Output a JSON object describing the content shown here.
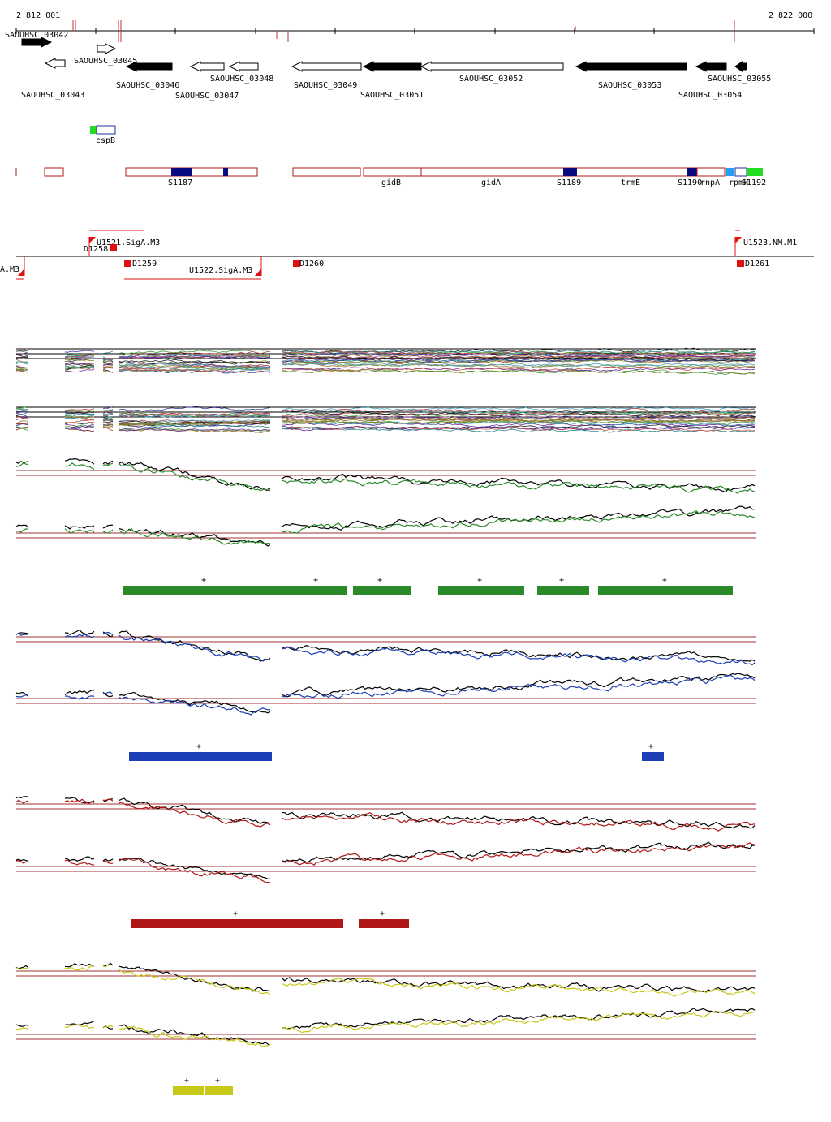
{
  "ruler": {
    "start_label": "2 812 001",
    "end_label": "2 822 000"
  },
  "chart_data": {
    "type": "genome-browser",
    "genomic_range": {
      "start": 2812001,
      "end": 2822000
    },
    "genes": [
      {
        "name": "SAOUHSC_03042",
        "strand": "+",
        "fill": "black"
      },
      {
        "name": "SAOUHSC_03043",
        "strand": "-",
        "fill": "white"
      },
      {
        "name": "SAOUHSC_03045",
        "strand": "+",
        "fill": "white"
      },
      {
        "name": "SAOUHSC_03046",
        "strand": "-",
        "fill": "black"
      },
      {
        "name": "SAOUHSC_03047",
        "strand": "-",
        "fill": "white"
      },
      {
        "name": "SAOUHSC_03048",
        "strand": "-",
        "fill": "white"
      },
      {
        "name": "SAOUHSC_03049",
        "strand": "-",
        "fill": "white"
      },
      {
        "name": "SAOUHSC_03051",
        "strand": "-",
        "fill": "black"
      },
      {
        "name": "SAOUHSC_03052",
        "strand": "-",
        "fill": "white"
      },
      {
        "name": "SAOUHSC_03053",
        "strand": "-",
        "fill": "black"
      },
      {
        "name": "SAOUHSC_03054",
        "strand": "-",
        "fill": "black"
      },
      {
        "name": "SAOUHSC_03055",
        "strand": "-",
        "fill": "black"
      }
    ],
    "rna_features": [
      {
        "name": "cspB"
      }
    ],
    "annotations": [
      "S1187",
      "gidB",
      "gidA",
      "S1189",
      "trmE",
      "S1190",
      "rnpA",
      "rpmH",
      "S1192"
    ],
    "promoters": {
      "top": [
        "U1521.SigA.M3",
        "U1523.NM.M1"
      ],
      "bottom": [
        "A.M3",
        "U1522.SigA.M3"
      ],
      "markers": [
        "D1258",
        "D1259",
        "D1260",
        "D1261"
      ]
    },
    "track_colors": {
      "condition_1": "#2a8a2a",
      "condition_2": "#1c3fb5",
      "condition_3": "#b01818",
      "condition_4": "#c8c818",
      "reference": "#000000",
      "threshold": "#a03030"
    },
    "segments": {
      "green": 6,
      "blue": 2,
      "red": 2,
      "yellow": 2,
      "segment_label": "+"
    }
  }
}
